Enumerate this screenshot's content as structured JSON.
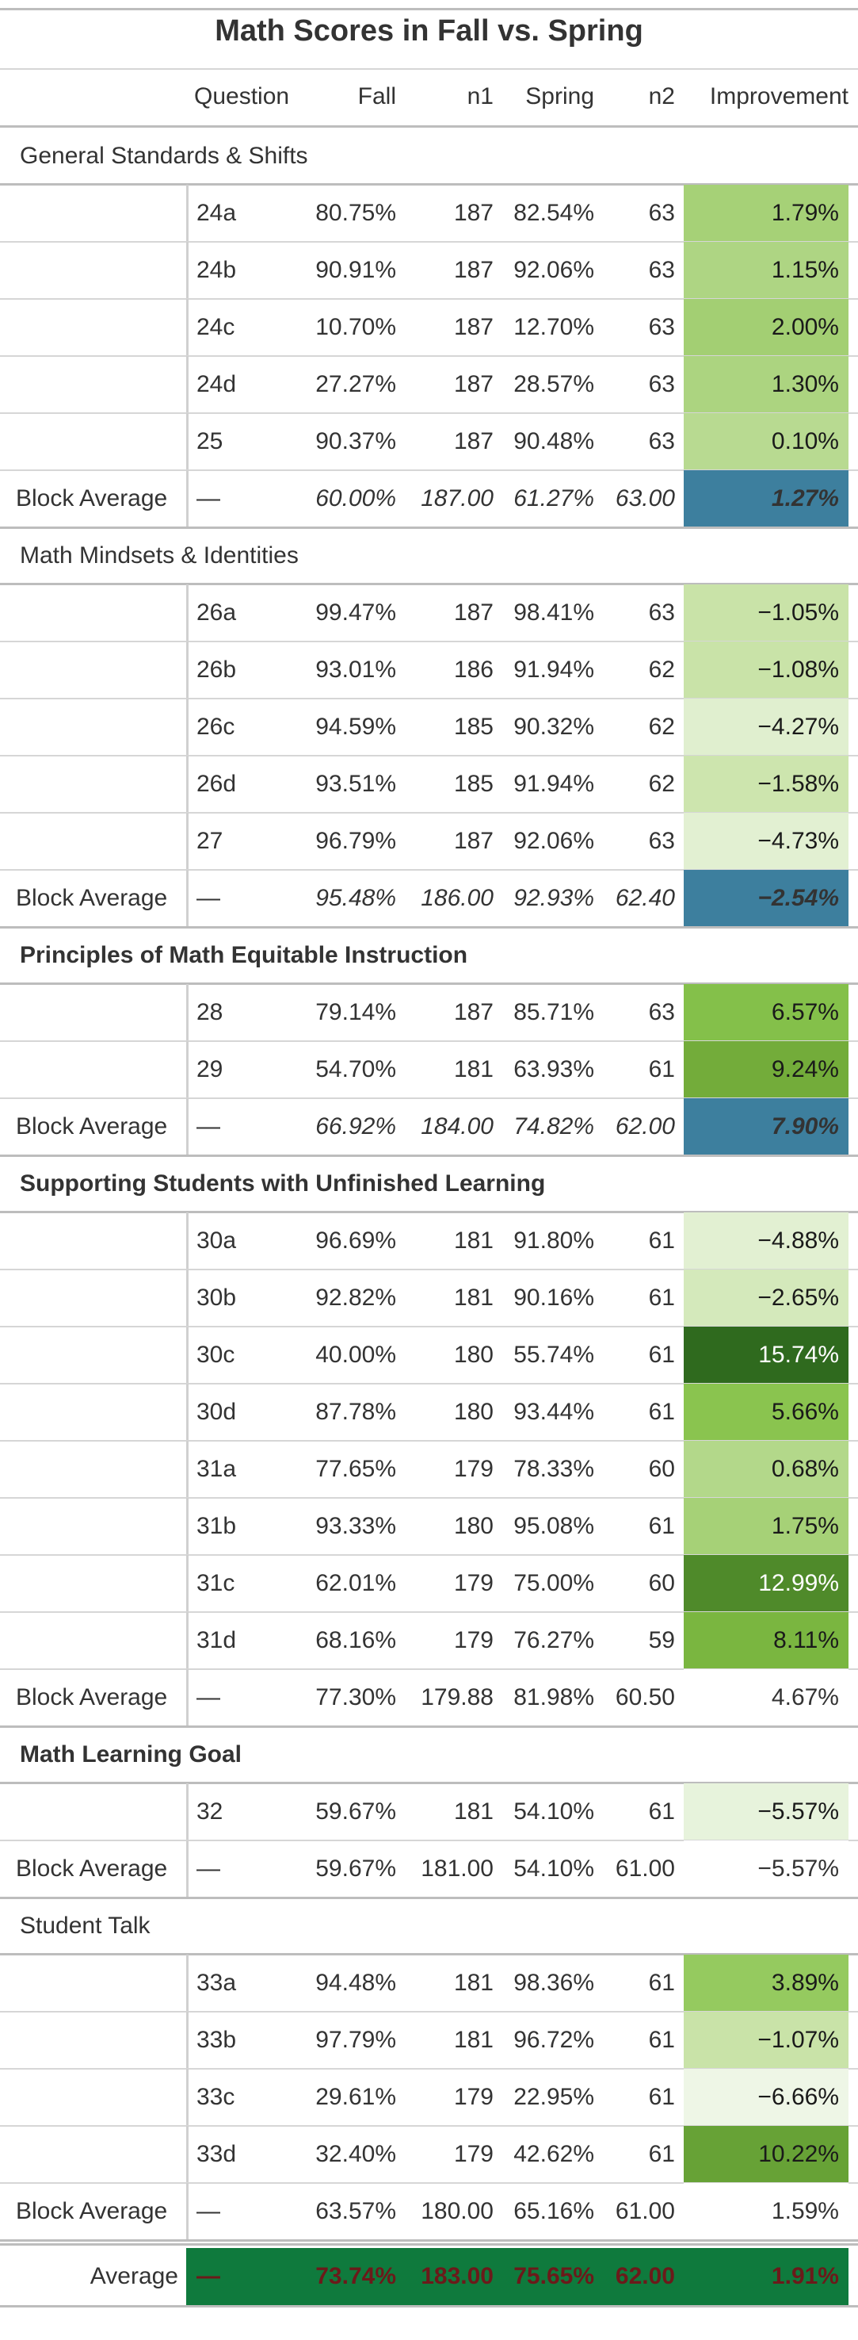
{
  "title": "Math Scores in Fall vs. Spring",
  "columns": {
    "question": "Question",
    "fall": "Fall",
    "n1": "n1",
    "spring": "Spring",
    "n2": "n2",
    "improvement": "Improvement"
  },
  "groups": [
    {
      "name": "General Standards & Shifts",
      "bold": false,
      "rows": [
        {
          "question": "24a",
          "fall": "80.75%",
          "n1": "187",
          "spring": "82.54%",
          "n2": "63",
          "improvement": "1.79%",
          "bg": "#a6d177",
          "fg": "#1a1a1a"
        },
        {
          "question": "24b",
          "fall": "90.91%",
          "n1": "187",
          "spring": "92.06%",
          "n2": "63",
          "improvement": "1.15%",
          "bg": "#aed583",
          "fg": "#1a1a1a"
        },
        {
          "question": "24c",
          "fall": "10.70%",
          "n1": "187",
          "spring": "12.70%",
          "n2": "63",
          "improvement": "2.00%",
          "bg": "#a3cf73",
          "fg": "#1a1a1a"
        },
        {
          "question": "24d",
          "fall": "27.27%",
          "n1": "187",
          "spring": "28.57%",
          "n2": "63",
          "improvement": "1.30%",
          "bg": "#acd480",
          "fg": "#1a1a1a"
        },
        {
          "question": "25",
          "fall": "90.37%",
          "n1": "187",
          "spring": "90.48%",
          "n2": "63",
          "improvement": "0.10%",
          "bg": "#b8da91",
          "fg": "#1a1a1a"
        }
      ],
      "average": {
        "label": "Block Average",
        "question": "—",
        "fall": "60.00%",
        "n1": "187.00",
        "spring": "61.27%",
        "n2": "63.00",
        "improvement": "1.27%",
        "bg": "#3d7f9e",
        "fg": "#333333",
        "italic": true
      }
    },
    {
      "name": "Math Mindsets & Identities",
      "bold": false,
      "rows": [
        {
          "question": "26a",
          "fall": "99.47%",
          "n1": "187",
          "spring": "98.41%",
          "n2": "63",
          "improvement": "−1.05%",
          "bg": "#c9e3a8",
          "fg": "#1a1a1a"
        },
        {
          "question": "26b",
          "fall": "93.01%",
          "n1": "186",
          "spring": "91.94%",
          "n2": "62",
          "improvement": "−1.08%",
          "bg": "#c9e3a8",
          "fg": "#1a1a1a"
        },
        {
          "question": "26c",
          "fall": "94.59%",
          "n1": "185",
          "spring": "90.32%",
          "n2": "62",
          "improvement": "−4.27%",
          "bg": "#e0efcf",
          "fg": "#1a1a1a"
        },
        {
          "question": "26d",
          "fall": "93.51%",
          "n1": "185",
          "spring": "91.94%",
          "n2": "62",
          "improvement": "−1.58%",
          "bg": "#cde5ae",
          "fg": "#1a1a1a"
        },
        {
          "question": "27",
          "fall": "96.79%",
          "n1": "187",
          "spring": "92.06%",
          "n2": "63",
          "improvement": "−4.73%",
          "bg": "#e2f0d2",
          "fg": "#1a1a1a"
        }
      ],
      "average": {
        "label": "Block Average",
        "question": "—",
        "fall": "95.48%",
        "n1": "186.00",
        "spring": "92.93%",
        "n2": "62.40",
        "improvement": "−2.54%",
        "bg": "#3d7f9e",
        "fg": "#333333",
        "italic": true
      }
    },
    {
      "name": "Principles of Math Equitable Instruction",
      "bold": true,
      "rows": [
        {
          "question": "28",
          "fall": "79.14%",
          "n1": "187",
          "spring": "85.71%",
          "n2": "63",
          "improvement": "6.57%",
          "bg": "#84c04a",
          "fg": "#1a1a1a"
        },
        {
          "question": "29",
          "fall": "54.70%",
          "n1": "181",
          "spring": "63.93%",
          "n2": "61",
          "improvement": "9.24%",
          "bg": "#73ac3a",
          "fg": "#1a1a1a"
        }
      ],
      "average": {
        "label": "Block Average",
        "question": "—",
        "fall": "66.92%",
        "n1": "184.00",
        "spring": "74.82%",
        "n2": "62.00",
        "improvement": "7.90%",
        "bg": "#3d7f9e",
        "fg": "#333333",
        "italic": true
      }
    },
    {
      "name": "Supporting Students with Unfinished Learning",
      "bold": true,
      "rows": [
        {
          "question": "30a",
          "fall": "96.69%",
          "n1": "181",
          "spring": "91.80%",
          "n2": "61",
          "improvement": "−4.88%",
          "bg": "#e2f0d2",
          "fg": "#1a1a1a"
        },
        {
          "question": "30b",
          "fall": "92.82%",
          "n1": "181",
          "spring": "90.16%",
          "n2": "61",
          "improvement": "−2.65%",
          "bg": "#d4e9bb",
          "fg": "#1a1a1a"
        },
        {
          "question": "30c",
          "fall": "40.00%",
          "n1": "180",
          "spring": "55.74%",
          "n2": "61",
          "improvement": "15.74%",
          "bg": "#2f6a1e",
          "fg": "#ffffff"
        },
        {
          "question": "30d",
          "fall": "87.78%",
          "n1": "180",
          "spring": "93.44%",
          "n2": "61",
          "improvement": "5.66%",
          "bg": "#8ac44f",
          "fg": "#1a1a1a"
        },
        {
          "question": "31a",
          "fall": "77.65%",
          "n1": "179",
          "spring": "78.33%",
          "n2": "60",
          "improvement": "0.68%",
          "bg": "#b3d88a",
          "fg": "#1a1a1a"
        },
        {
          "question": "31b",
          "fall": "93.33%",
          "n1": "180",
          "spring": "95.08%",
          "n2": "61",
          "improvement": "1.75%",
          "bg": "#a6d177",
          "fg": "#1a1a1a"
        },
        {
          "question": "31c",
          "fall": "62.01%",
          "n1": "179",
          "spring": "75.00%",
          "n2": "60",
          "improvement": "12.99%",
          "bg": "#4f8a2a",
          "fg": "#ffffff"
        },
        {
          "question": "31d",
          "fall": "68.16%",
          "n1": "179",
          "spring": "76.27%",
          "n2": "59",
          "improvement": "8.11%",
          "bg": "#7ab640",
          "fg": "#1a1a1a"
        }
      ],
      "average": {
        "label": "Block Average",
        "question": "—",
        "fall": "77.30%",
        "n1": "179.88",
        "spring": "81.98%",
        "n2": "60.50",
        "improvement": "4.67%",
        "bg": "#ffffff",
        "fg": "#333333",
        "italic": false
      }
    },
    {
      "name": "Math Learning Goal",
      "bold": true,
      "rows": [
        {
          "question": "32",
          "fall": "59.67%",
          "n1": "181",
          "spring": "54.10%",
          "n2": "61",
          "improvement": "−5.57%",
          "bg": "#e7f3dc",
          "fg": "#1a1a1a"
        }
      ],
      "average": {
        "label": "Block Average",
        "question": "—",
        "fall": "59.67%",
        "n1": "181.00",
        "spring": "54.10%",
        "n2": "61.00",
        "improvement": "−5.57%",
        "bg": "#ffffff",
        "fg": "#333333",
        "italic": false
      }
    },
    {
      "name": "Student Talk",
      "bold": false,
      "rows": [
        {
          "question": "33a",
          "fall": "94.48%",
          "n1": "181",
          "spring": "98.36%",
          "n2": "61",
          "improvement": "3.89%",
          "bg": "#95ca5f",
          "fg": "#1a1a1a"
        },
        {
          "question": "33b",
          "fall": "97.79%",
          "n1": "181",
          "spring": "96.72%",
          "n2": "61",
          "improvement": "−1.07%",
          "bg": "#c9e3a8",
          "fg": "#1a1a1a"
        },
        {
          "question": "33c",
          "fall": "29.61%",
          "n1": "179",
          "spring": "22.95%",
          "n2": "61",
          "improvement": "−6.66%",
          "bg": "#eef6e6",
          "fg": "#1a1a1a"
        },
        {
          "question": "33d",
          "fall": "32.40%",
          "n1": "179",
          "spring": "42.62%",
          "n2": "61",
          "improvement": "10.22%",
          "bg": "#67a236",
          "fg": "#1a1a1a"
        }
      ],
      "average": {
        "label": "Block Average",
        "question": "—",
        "fall": "63.57%",
        "n1": "180.00",
        "spring": "65.16%",
        "n2": "61.00",
        "improvement": "1.59%",
        "bg": "#ffffff",
        "fg": "#333333",
        "italic": false
      }
    }
  ],
  "grand_average": {
    "label": "Average",
    "question": "—",
    "fall": "73.74%",
    "n1": "183.00",
    "spring": "75.65%",
    "n2": "62.00",
    "improvement": "1.91%",
    "bg": "#0f7a3d",
    "fg": "#6b1a1a"
  },
  "colors": {
    "block_average_highlight": "#3d7f9e",
    "grand_average_row": "#0f7a3d",
    "grand_average_text": "#6b1a1a",
    "rule": "#d6d6d6",
    "heavy_rule": "#bdbdbd"
  }
}
